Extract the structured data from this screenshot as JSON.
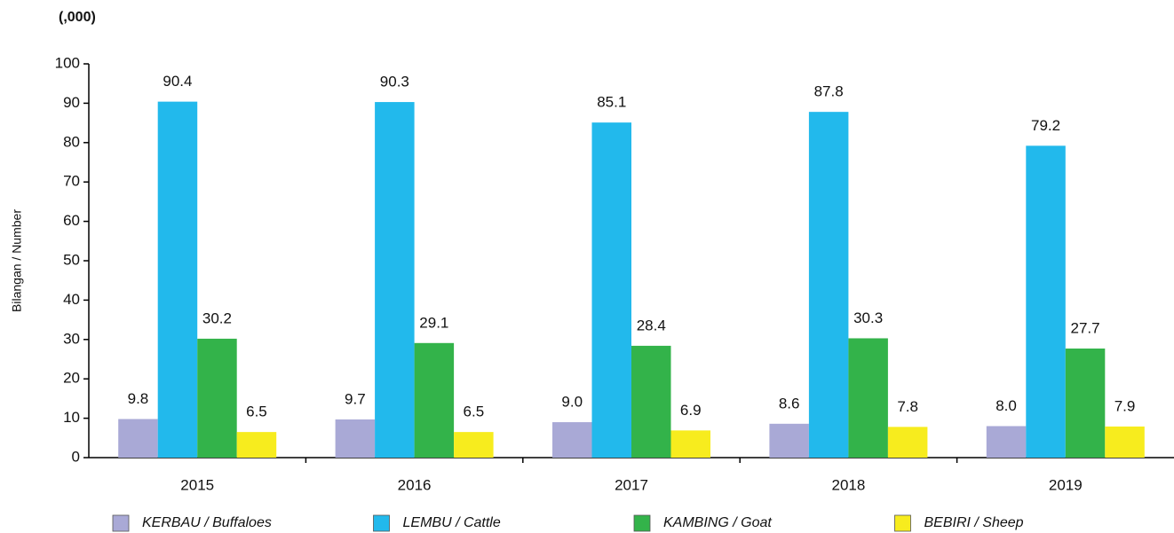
{
  "chart_data": {
    "type": "bar",
    "unit_label": "(,000)",
    "y_label": "Bilangan / Number",
    "categories": [
      "2015",
      "2016",
      "2017",
      "2018",
      "2019"
    ],
    "series": [
      {
        "name": "KERBAU / Buffaloes",
        "color": "#a9a9d6",
        "values": [
          9.8,
          9.7,
          9.0,
          8.6,
          8.0
        ],
        "value_labels": [
          "9.8",
          "9.7",
          "9.0",
          "8.6",
          "8.0"
        ]
      },
      {
        "name": "LEMBU / Cattle",
        "color": "#22b9ec",
        "values": [
          90.4,
          90.3,
          85.1,
          87.8,
          79.2
        ],
        "value_labels": [
          "90.4",
          "90.3",
          "85.1",
          "87.8",
          "79.2"
        ]
      },
      {
        "name": "KAMBING / Goat",
        "color": "#33b34a",
        "values": [
          30.2,
          29.1,
          28.4,
          30.3,
          27.7
        ],
        "value_labels": [
          "30.2",
          "29.1",
          "28.4",
          "30.3",
          "27.7"
        ]
      },
      {
        "name": "BEBIRI / Sheep",
        "color": "#f7ec1e",
        "values": [
          6.5,
          6.5,
          6.9,
          7.8,
          7.9
        ],
        "value_labels": [
          "6.5",
          "6.5",
          "6.9",
          "7.8",
          "7.9"
        ]
      }
    ],
    "ylim": [
      0,
      100
    ],
    "yticks": [
      0,
      10,
      20,
      30,
      40,
      50,
      60,
      70,
      80,
      90,
      100
    ],
    "grid": false,
    "legend": "bottom"
  }
}
